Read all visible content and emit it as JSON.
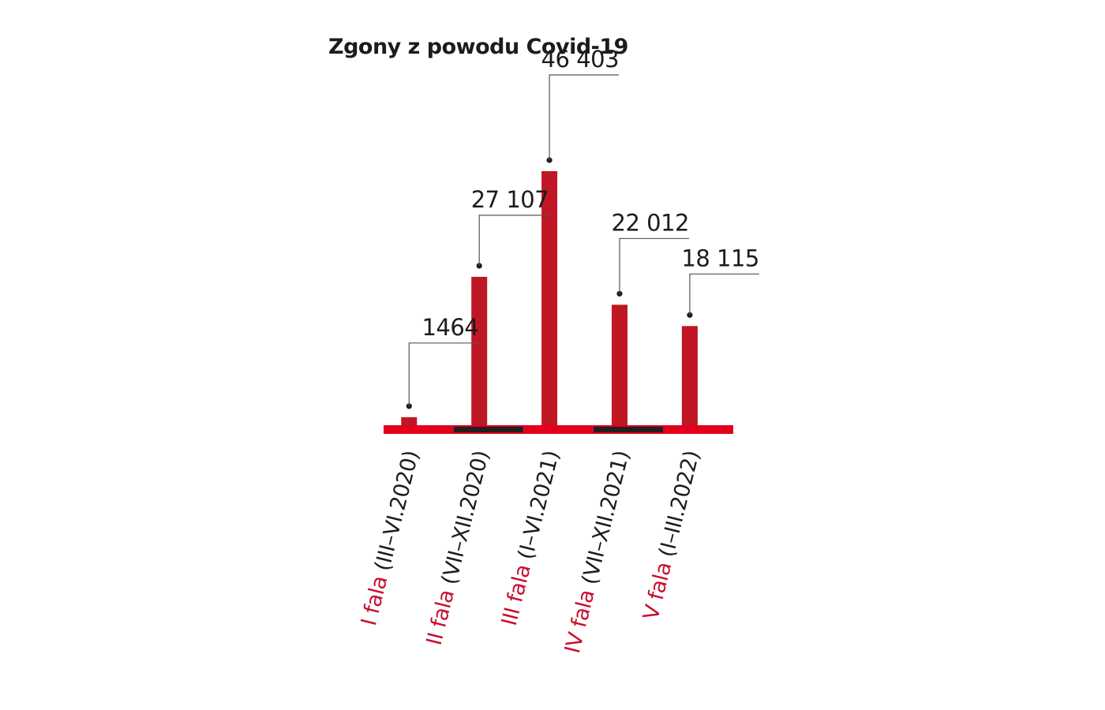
{
  "colors": {
    "bar": "#bf1724",
    "axis_red": "#e3001b",
    "axis_dark": "#231f20",
    "label_red": "#c8102e",
    "text": "#1c1c1c",
    "leader": "#555555"
  },
  "chart_data": {
    "type": "bar",
    "title": "Zgony z powodu Covid-19",
    "xlabel": "",
    "ylabel": "",
    "ylim": [
      0,
      46403
    ],
    "grid": false,
    "legend": "none",
    "categories": [
      {
        "wave": "I fala",
        "period": "(III–VI.2020)"
      },
      {
        "wave": "II fala",
        "period": "(VII–XII.2020)"
      },
      {
        "wave": "III fala",
        "period": "(I–VI.2021)"
      },
      {
        "wave": "IV fala",
        "period": "(VII–XII.2021)"
      },
      {
        "wave": "V fala",
        "period": "(I–III.2022)"
      }
    ],
    "values": [
      1464,
      27107,
      46403,
      22012,
      18115
    ],
    "value_labels": [
      "1464",
      "27 107",
      "46 403",
      "22 012",
      "18 115"
    ]
  }
}
